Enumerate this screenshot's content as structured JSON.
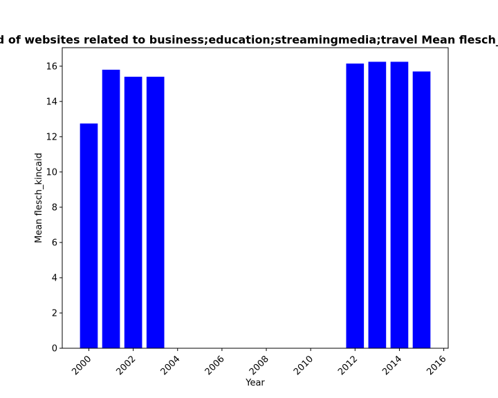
{
  "chart_data": {
    "type": "bar",
    "title": "Mean flesch_kincaid of websites related to business;education;streamingmedia;travel Mean flesch_kincaid in past years",
    "xlabel": "Year",
    "ylabel": "Mean flesch_kincaid",
    "x": [
      2000,
      2001,
      2002,
      2003,
      2012,
      2013,
      2014,
      2015
    ],
    "values": [
      12.75,
      15.8,
      15.4,
      15.4,
      16.15,
      16.25,
      16.25,
      15.7
    ],
    "xlim": [
      1998.8,
      2016.2
    ],
    "ylim": [
      0,
      17.05
    ],
    "xticks": [
      2000,
      2002,
      2004,
      2006,
      2008,
      2010,
      2012,
      2014,
      2016
    ],
    "yticks": [
      0,
      2,
      4,
      6,
      8,
      10,
      12,
      14,
      16
    ],
    "xtick_rotation": "45 degrees",
    "bar_color": "#0000ff",
    "grid": false,
    "legend": "none"
  }
}
